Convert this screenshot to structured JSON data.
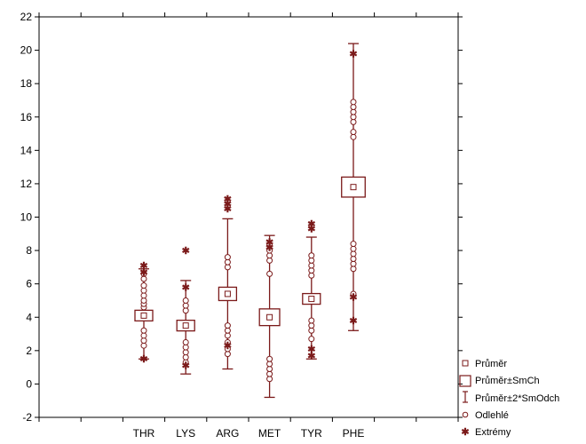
{
  "chart_data": {
    "type": "boxplot",
    "categories": [
      "THR",
      "LYS",
      "ARG",
      "MET",
      "TYR",
      "PHE"
    ],
    "ylim": [
      -2,
      22
    ],
    "yticks": [
      -2,
      0,
      2,
      4,
      6,
      8,
      10,
      12,
      14,
      16,
      18,
      20,
      22
    ],
    "grid": false,
    "legend_placement": "bottom-right",
    "color": "#7b1a1a",
    "series": [
      {
        "category": "THR",
        "mean": 4.1,
        "se_low": 3.95,
        "se_high": 4.25,
        "sd2_low": 1.5,
        "sd2_high": 6.9,
        "outliers": [
          2.3,
          2.6,
          2.9,
          3.2,
          4.6,
          4.8,
          5.0,
          5.3,
          5.6,
          5.9,
          6.3,
          6.6
        ],
        "extremes": [
          1.5,
          6.7,
          7.1
        ]
      },
      {
        "category": "LYS",
        "mean": 3.5,
        "se_low": 3.3,
        "se_high": 3.7,
        "sd2_low": 0.6,
        "sd2_high": 6.2,
        "outliers": [
          1.3,
          1.6,
          1.9,
          2.2,
          2.5,
          4.4,
          4.7,
          5.0
        ],
        "extremes": [
          5.8,
          8.0,
          1.1
        ]
      },
      {
        "category": "ARG",
        "mean": 5.4,
        "se_low": 5.0,
        "se_high": 5.8,
        "sd2_low": 0.9,
        "sd2_high": 9.9,
        "outliers": [
          1.8,
          2.1,
          2.5,
          2.9,
          3.2,
          3.5,
          7.0,
          7.3,
          7.6
        ],
        "extremes": [
          10.5,
          10.8,
          11.1,
          2.3
        ]
      },
      {
        "category": "MET",
        "mean": 4.0,
        "se_low": 3.5,
        "se_high": 4.5,
        "sd2_low": -0.8,
        "sd2_high": 8.9,
        "outliers": [
          0.3,
          0.6,
          0.9,
          1.2,
          1.5,
          6.6,
          7.4,
          7.7,
          8.0,
          8.3
        ],
        "extremes": [
          8.5,
          8.2
        ]
      },
      {
        "category": "TYR",
        "mean": 5.1,
        "se_low": 4.8,
        "se_high": 5.4,
        "sd2_low": 1.5,
        "sd2_high": 8.8,
        "outliers": [
          2.7,
          3.2,
          3.5,
          3.8,
          6.5,
          6.8,
          7.1,
          7.4,
          7.7
        ],
        "extremes": [
          9.3,
          9.6,
          1.7,
          2.1
        ]
      },
      {
        "category": "PHE",
        "mean": 11.8,
        "se_low": 11.2,
        "se_high": 12.4,
        "sd2_low": 3.2,
        "sd2_high": 20.4,
        "outliers": [
          5.4,
          6.9,
          7.2,
          7.5,
          7.8,
          8.1,
          8.4,
          14.8,
          15.1,
          15.7,
          16.0,
          16.3,
          16.6,
          16.9
        ],
        "extremes": [
          3.8,
          5.2,
          19.8
        ]
      }
    ]
  },
  "legend": {
    "mean": "Průměr",
    "se": "Průměr±SmCh",
    "sd2": "Průměr±2*SmOdch",
    "outliers": "Odlehlé",
    "extremes": "Extrémy"
  }
}
